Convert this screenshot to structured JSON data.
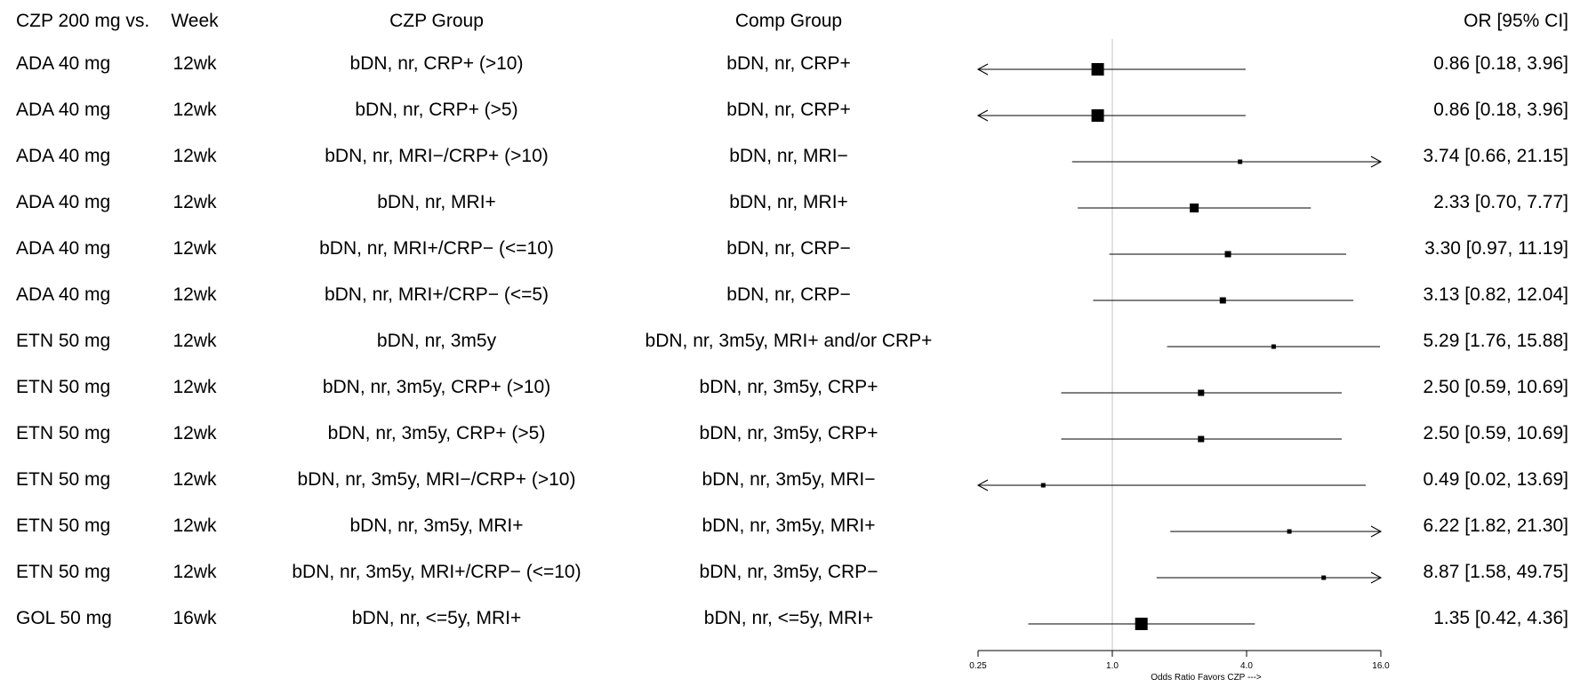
{
  "headers": {
    "comparator": "CZP 200 mg vs.",
    "week": "Week",
    "czp_group": "CZP Group",
    "comp_group": "Comp Group",
    "or_ci": "OR [95% CI]"
  },
  "rows": [
    {
      "comparator": "ADA 40 mg",
      "week": "12wk",
      "czp_group": "bDN, nr, CRP+ (>10)",
      "comp_group": "bDN, nr, CRP+",
      "or_text": "0.86 [0.18, 3.96]"
    },
    {
      "comparator": "ADA 40 mg",
      "week": "12wk",
      "czp_group": "bDN, nr, CRP+ (>5)",
      "comp_group": "bDN, nr, CRP+",
      "or_text": "0.86 [0.18, 3.96]"
    },
    {
      "comparator": "ADA 40 mg",
      "week": "12wk",
      "czp_group": "bDN, nr, MRI−/CRP+ (>10)",
      "comp_group": "bDN, nr, MRI−",
      "or_text": "3.74 [0.66, 21.15]"
    },
    {
      "comparator": "ADA 40 mg",
      "week": "12wk",
      "czp_group": "bDN, nr, MRI+",
      "comp_group": "bDN, nr, MRI+",
      "or_text": "2.33 [0.70, 7.77]"
    },
    {
      "comparator": "ADA 40 mg",
      "week": "12wk",
      "czp_group": "bDN, nr, MRI+/CRP− (<=10)",
      "comp_group": "bDN, nr, CRP−",
      "or_text": "3.30 [0.97, 11.19]"
    },
    {
      "comparator": "ADA 40 mg",
      "week": "12wk",
      "czp_group": "bDN, nr, MRI+/CRP− (<=5)",
      "comp_group": "bDN, nr, CRP−",
      "or_text": "3.13 [0.82, 12.04]"
    },
    {
      "comparator": "ETN 50 mg",
      "week": "12wk",
      "czp_group": "bDN, nr, 3m5y",
      "comp_group": "bDN, nr, 3m5y, MRI+ and/or CRP+",
      "or_text": "5.29 [1.76, 15.88]"
    },
    {
      "comparator": "ETN 50 mg",
      "week": "12wk",
      "czp_group": "bDN, nr, 3m5y, CRP+ (>10)",
      "comp_group": "bDN, nr, 3m5y, CRP+",
      "or_text": "2.50 [0.59, 10.69]"
    },
    {
      "comparator": "ETN 50 mg",
      "week": "12wk",
      "czp_group": "bDN, nr, 3m5y, CRP+ (>5)",
      "comp_group": "bDN, nr, 3m5y, CRP+",
      "or_text": "2.50 [0.59, 10.69]"
    },
    {
      "comparator": "ETN 50 mg",
      "week": "12wk",
      "czp_group": "bDN, nr, 3m5y, MRI−/CRP+ (>10)",
      "comp_group": "bDN, nr, 3m5y, MRI−",
      "or_text": "0.49 [0.02, 13.69]"
    },
    {
      "comparator": "ETN 50 mg",
      "week": "12wk",
      "czp_group": "bDN, nr, 3m5y, MRI+",
      "comp_group": "bDN, nr, 3m5y, MRI+",
      "or_text": "6.22 [1.82, 21.30]"
    },
    {
      "comparator": "ETN 50 mg",
      "week": "12wk",
      "czp_group": "bDN, nr, 3m5y, MRI+/CRP− (<=10)",
      "comp_group": "bDN, nr, 3m5y, CRP−",
      "or_text": "8.87 [1.58, 49.75]"
    },
    {
      "comparator": "GOL 50 mg",
      "week": "16wk",
      "czp_group": "bDN, nr, <=5y, MRI+",
      "comp_group": "bDN, nr, <=5y, MRI+",
      "or_text": "1.35 [0.42, 4.36]"
    }
  ],
  "chart_data": {
    "type": "forest",
    "scale": "log2",
    "xlim": [
      0.25,
      16.0
    ],
    "xticks": [
      "0.25",
      "1.0",
      "4.0",
      "16.0"
    ],
    "xtick_values": [
      0.25,
      1.0,
      4.0,
      16.0
    ],
    "reference_line": 1.0,
    "xlabel": "Odds Ratio Favors CZP --->",
    "points": [
      {
        "or": 0.86,
        "lo": 0.18,
        "hi": 3.96,
        "weight": "large"
      },
      {
        "or": 0.86,
        "lo": 0.18,
        "hi": 3.96,
        "weight": "large"
      },
      {
        "or": 3.74,
        "lo": 0.66,
        "hi": 21.15,
        "weight": "tiny"
      },
      {
        "or": 2.33,
        "lo": 0.7,
        "hi": 7.77,
        "weight": "medium"
      },
      {
        "or": 3.3,
        "lo": 0.97,
        "hi": 11.19,
        "weight": "small"
      },
      {
        "or": 3.13,
        "lo": 0.82,
        "hi": 12.04,
        "weight": "small"
      },
      {
        "or": 5.29,
        "lo": 1.76,
        "hi": 15.88,
        "weight": "tiny"
      },
      {
        "or": 2.5,
        "lo": 0.59,
        "hi": 10.69,
        "weight": "small"
      },
      {
        "or": 2.5,
        "lo": 0.59,
        "hi": 10.69,
        "weight": "small"
      },
      {
        "or": 0.49,
        "lo": 0.02,
        "hi": 13.69,
        "weight": "tiny"
      },
      {
        "or": 6.22,
        "lo": 1.82,
        "hi": 21.3,
        "weight": "tiny"
      },
      {
        "or": 8.87,
        "lo": 1.58,
        "hi": 49.75,
        "weight": "tiny"
      },
      {
        "or": 1.35,
        "lo": 0.42,
        "hi": 4.36,
        "weight": "large"
      }
    ]
  }
}
